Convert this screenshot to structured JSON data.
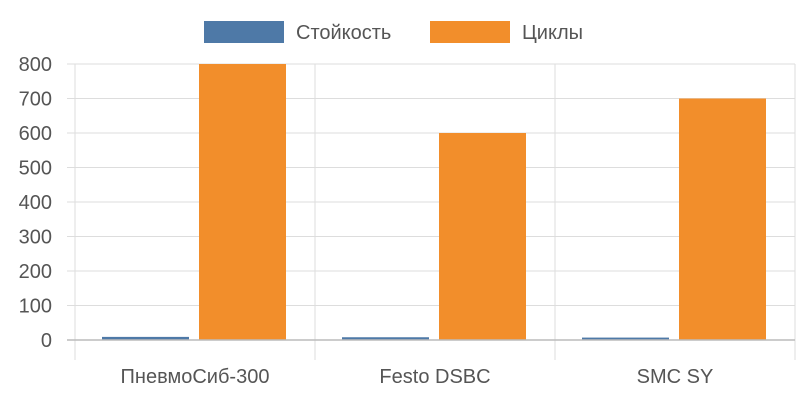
{
  "colors": {
    "series_1": "#4e79a7",
    "series_2": "#f28e2b",
    "grid": "#dddddd",
    "axis": "#bbbbbb",
    "text": "#555555"
  },
  "chart_data": {
    "type": "bar",
    "categories": [
      "ПневмоСиб-300",
      "Festo DSBC",
      "SMC SY"
    ],
    "series": [
      {
        "name": "Стойкость",
        "values": [
          9,
          8,
          7
        ]
      },
      {
        "name": "Циклы",
        "values": [
          800,
          600,
          700
        ]
      }
    ],
    "title": "",
    "xlabel": "",
    "ylabel": "",
    "ylim": [
      0,
      800
    ],
    "yticks": [
      0,
      100,
      200,
      300,
      400,
      500,
      600,
      700,
      800
    ],
    "grid": true,
    "legend_position": "top-center"
  }
}
